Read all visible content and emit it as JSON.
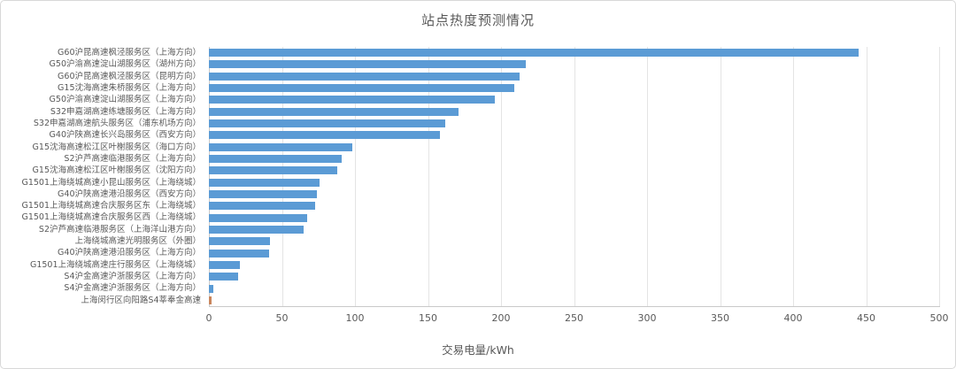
{
  "chart_data": {
    "type": "bar",
    "orientation": "horizontal",
    "title": "站点热度预测情况",
    "xlabel": "交易电量/kWh",
    "ylabel": "",
    "xlim": [
      0,
      500
    ],
    "xticks": [
      0,
      50,
      100,
      150,
      200,
      250,
      300,
      350,
      400,
      450,
      500
    ],
    "grid": true,
    "legend": "none",
    "categories": [
      "G60沪昆高速枫泾服务区（上海方向）",
      "G50沪渝高速淀山湖服务区（湖州方向）",
      "G60沪昆高速枫泾服务区（昆明方向）",
      "G15沈海高速朱桥服务区（上海方向）",
      "G50沪渝高速淀山湖服务区（上海方向）",
      "S32申嘉湖高速练塘服务区（上海方向）",
      "S32申嘉湖高速航头服务区（浦东机场方向）",
      "G40沪陕高速长兴岛服务区（西安方向）",
      "G15沈海高速松江区叶榭服务区（海口方向）",
      "S2沪芦高速临港服务区（上海方向）",
      "G15沈海高速松江区叶榭服务区（沈阳方向）",
      "G1501上海绕城高速小昆山服务区（上海绕城）",
      "G40沪陕高速港沿服务区（西安方向）",
      "G1501上海绕城高速合庆服务区东（上海绕城）",
      "G1501上海绕城高速合庆服务区西（上海绕城）",
      "S2沪芦高速临港服务区（上海洋山港方向）",
      "上海绕城高速光明服务区（外圈）",
      "G40沪陕高速港沿服务区（上海方向）",
      "G1501上海绕城高速庄行服务区（上海绕城）",
      "S4沪金高速沪浙服务区（上海方向）",
      "S4沪金高速沪浙服务区（上海方向）",
      "上海闵行区向阳路S4莘奉金高速"
    ],
    "values": [
      445,
      217,
      213,
      209,
      196,
      171,
      162,
      158,
      98,
      91,
      88,
      76,
      74,
      73,
      67,
      65,
      42,
      41,
      21,
      20,
      3,
      2
    ],
    "bar_color": "#5B9BD5",
    "highlight_index": 21,
    "highlight_color": "#C9855C",
    "title_color": "#595959",
    "axis_text_color": "#595959"
  }
}
